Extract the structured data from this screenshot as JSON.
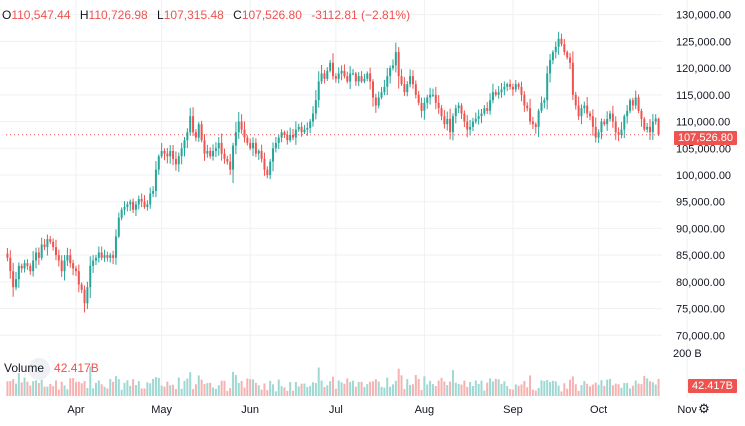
{
  "legend": {
    "open_label": "O",
    "open_value": "110,547.44",
    "high_label": "H",
    "high_value": "110,726.98",
    "low_label": "L",
    "low_value": "107,315.48",
    "close_label": "C",
    "close_value": "107,526.80",
    "change": "-3112.81 (−2.81%)"
  },
  "volume_legend": {
    "label": "Volume",
    "value": "42.417B"
  },
  "price_tag": "107,526.80",
  "volume_tag": "42.417B",
  "colors": {
    "up": "#26a69a",
    "down": "#ef5350",
    "up_vol": "#9fd8d3",
    "down_vol": "#f5b2b1",
    "grid": "#eef0f3"
  },
  "icons": {
    "settings": "gear-icon"
  },
  "chart_data": {
    "type": "candlestick",
    "y_axis": {
      "ticks": [
        130000,
        125000,
        120000,
        115000,
        110000,
        105000,
        100000,
        95000,
        90000,
        85000,
        80000,
        75000,
        70000
      ],
      "tick_labels": [
        "130,000.00",
        "125,000.00",
        "120,000.00",
        "115,000.00",
        "110,000.00",
        "105,000.00",
        "100,000.00",
        "95,000.00",
        "90,000.00",
        "85,000.00",
        "80,000.00",
        "75,000.00",
        "70,000.00"
      ],
      "range": [
        68000,
        130500
      ]
    },
    "volume_axis_label": "200 B",
    "x_axis": {
      "months": [
        "Apr",
        "May",
        "Jun",
        "Jul",
        "Aug",
        "Sep",
        "Oct",
        "Nov"
      ],
      "month_start_index": [
        24,
        54,
        85,
        115,
        146,
        177,
        207,
        238
      ]
    },
    "close": [
      84500,
      82000,
      79000,
      80500,
      83000,
      82500,
      83500,
      83000,
      82000,
      84000,
      85500,
      84500,
      87000,
      86500,
      88000,
      87500,
      86500,
      85000,
      84000,
      82000,
      84000,
      85000,
      83500,
      82500,
      82000,
      79500,
      78500,
      76000,
      79000,
      83000,
      84000,
      84500,
      85500,
      84500,
      85000,
      84500,
      85000,
      84500,
      88500,
      92000,
      93500,
      94000,
      94500,
      95000,
      93500,
      94500,
      95500,
      95000,
      94000,
      94500,
      96500,
      97000,
      101000,
      103500,
      104500,
      104000,
      103500,
      104500,
      103000,
      102000,
      103500,
      105000,
      106500,
      108000,
      111000,
      108000,
      107000,
      109500,
      106500,
      104000,
      104500,
      103500,
      104500,
      105000,
      106000,
      104000,
      103000,
      102500,
      101000,
      105500,
      108000,
      110000,
      108500,
      107000,
      106000,
      105000,
      106000,
      104000,
      104500,
      103000,
      101000,
      100000,
      102500,
      105000,
      106000,
      107000,
      108000,
      107500,
      106500,
      107500,
      107000,
      108500,
      109000,
      108000,
      108500,
      108800,
      110000,
      111500,
      114000,
      117500,
      119000,
      118000,
      119500,
      121000,
      118500,
      118000,
      119000,
      119500,
      118500,
      117500,
      119000,
      119000,
      117500,
      118500,
      117500,
      118000,
      119000,
      117500,
      114500,
      113000,
      114500,
      115500,
      116500,
      118500,
      120000,
      120500,
      123000,
      118500,
      117000,
      115500,
      117000,
      118500,
      117000,
      115000,
      113500,
      112000,
      113500,
      114500,
      115000,
      115000,
      113500,
      112500,
      111000,
      109500,
      110500,
      108000,
      111000,
      112500,
      113000,
      111500,
      110000,
      108500,
      109000,
      110000,
      110500,
      111000,
      111500,
      112500,
      112000,
      114000,
      115500,
      115000,
      115500,
      116000,
      116500,
      117000,
      116500,
      116000,
      117000,
      116500,
      115000,
      113000,
      112500,
      110000,
      109500,
      109000,
      112000,
      113500,
      114000,
      119000,
      121500,
      123000,
      124000,
      125500,
      124500,
      123000,
      122000,
      121000,
      115000,
      113000,
      111000,
      112500,
      113000,
      111500,
      111000,
      109000,
      107000,
      108000,
      110000,
      109500,
      110500,
      111500,
      110000,
      108000,
      107500,
      108500,
      111000,
      112000,
      114000,
      113000,
      114500,
      112000,
      110500,
      108500,
      109000,
      108000,
      110000,
      110547,
      107527
    ],
    "ohlc_last": {
      "open": 110547.44,
      "high": 110726.98,
      "low": 107315.48,
      "close": 107526.8,
      "change": -3112.81,
      "change_pct": -2.81
    },
    "last_volume": "42.417B"
  }
}
